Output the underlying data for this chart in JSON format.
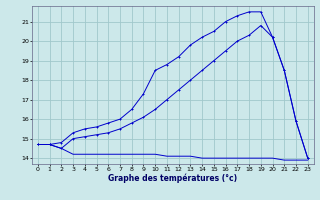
{
  "title": "Graphe des températures (°c)",
  "bg_color": "#cce8ea",
  "grid_color": "#a0c8cc",
  "line_color": "#0000cc",
  "xlim": [
    -0.5,
    23.5
  ],
  "ylim": [
    13.7,
    21.8
  ],
  "xticks": [
    0,
    1,
    2,
    3,
    4,
    5,
    6,
    7,
    8,
    9,
    10,
    11,
    12,
    13,
    14,
    15,
    16,
    17,
    18,
    19,
    20,
    21,
    22,
    23
  ],
  "yticks": [
    14,
    15,
    16,
    17,
    18,
    19,
    20,
    21
  ],
  "series1_x": [
    0,
    1,
    2,
    3,
    4,
    5,
    6,
    7,
    8,
    9,
    10,
    11,
    12,
    13,
    14,
    15,
    16,
    17,
    18,
    19,
    20,
    21,
    22,
    23
  ],
  "series1_y": [
    14.7,
    14.7,
    14.5,
    14.2,
    14.2,
    14.2,
    14.2,
    14.2,
    14.2,
    14.2,
    14.2,
    14.1,
    14.1,
    14.1,
    14.0,
    14.0,
    14.0,
    14.0,
    14.0,
    14.0,
    14.0,
    13.9,
    13.9,
    13.9
  ],
  "series2_x": [
    0,
    1,
    2,
    3,
    4,
    5,
    6,
    7,
    8,
    9,
    10,
    11,
    12,
    13,
    14,
    15,
    16,
    17,
    18,
    19,
    20,
    21,
    22,
    23
  ],
  "series2_y": [
    14.7,
    14.7,
    14.5,
    15.0,
    15.1,
    15.2,
    15.3,
    15.5,
    15.8,
    16.1,
    16.5,
    17.0,
    17.5,
    18.0,
    18.5,
    19.0,
    19.5,
    20.0,
    20.3,
    20.8,
    20.2,
    18.5,
    15.9,
    14.0
  ],
  "series3_x": [
    0,
    1,
    2,
    3,
    4,
    5,
    6,
    7,
    8,
    9,
    10,
    11,
    12,
    13,
    14,
    15,
    16,
    17,
    18,
    19,
    20,
    21,
    22,
    23
  ],
  "series3_y": [
    14.7,
    14.7,
    14.8,
    15.3,
    15.5,
    15.6,
    15.8,
    16.0,
    16.5,
    17.3,
    18.5,
    18.8,
    19.2,
    19.8,
    20.2,
    20.5,
    21.0,
    21.3,
    21.5,
    21.5,
    20.2,
    18.5,
    15.9,
    14.0
  ]
}
